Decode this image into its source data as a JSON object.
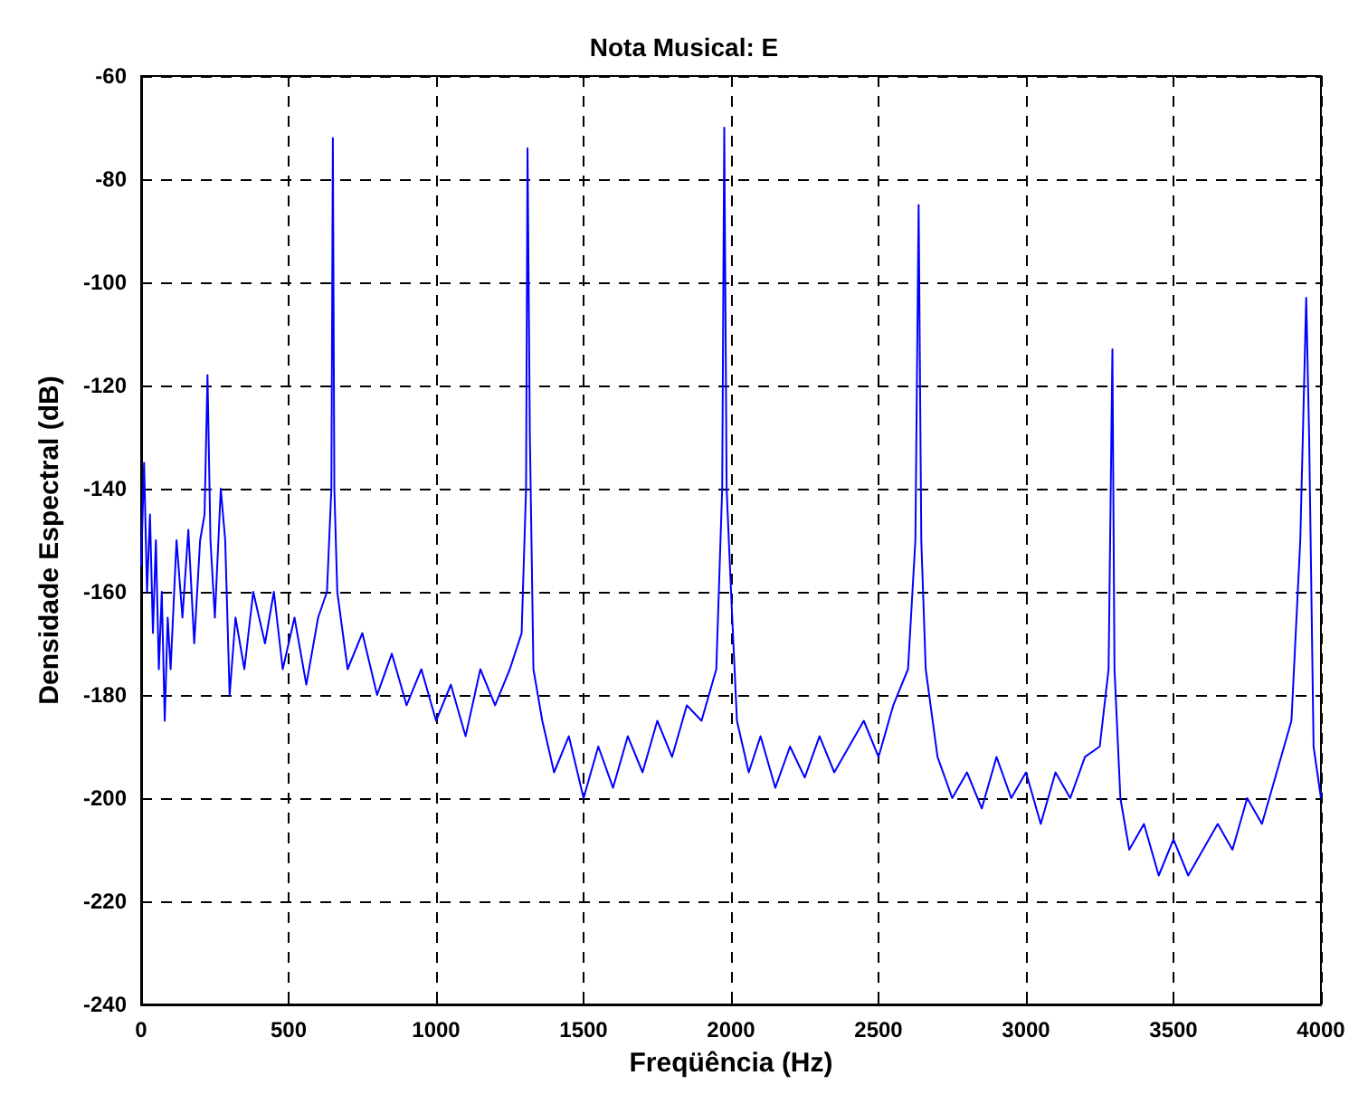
{
  "chart_data": {
    "type": "line",
    "title": "Nota Musical: E",
    "xlabel": "Freqüência (Hz)",
    "ylabel": "Densidade Espectral (dB)",
    "x": [
      0,
      10,
      20,
      30,
      40,
      50,
      60,
      70,
      80,
      90,
      100,
      120,
      140,
      160,
      180,
      200,
      215,
      225,
      235,
      250,
      270,
      285,
      300,
      320,
      350,
      380,
      420,
      450,
      480,
      520,
      560,
      600,
      630,
      645,
      650,
      655,
      665,
      700,
      750,
      800,
      850,
      900,
      950,
      1000,
      1050,
      1100,
      1150,
      1200,
      1250,
      1290,
      1305,
      1310,
      1318,
      1330,
      1360,
      1400,
      1450,
      1500,
      1550,
      1600,
      1650,
      1700,
      1750,
      1800,
      1850,
      1900,
      1950,
      1970,
      1977,
      1985,
      2000,
      2020,
      2060,
      2100,
      2150,
      2200,
      2250,
      2300,
      2350,
      2400,
      2450,
      2500,
      2550,
      2600,
      2625,
      2636,
      2645,
      2660,
      2700,
      2750,
      2800,
      2850,
      2900,
      2950,
      3000,
      3050,
      3100,
      3150,
      3200,
      3250,
      3280,
      3293,
      3300,
      3320,
      3350,
      3400,
      3450,
      3500,
      3550,
      3600,
      3650,
      3700,
      3750,
      3800,
      3850,
      3900,
      3930,
      3950,
      3960,
      3975,
      4000
    ],
    "series": [
      {
        "color": "#0000ff",
        "values": [
          -155,
          -135,
          -160,
          -145,
          -168,
          -150,
          -175,
          -160,
          -185,
          -165,
          -175,
          -150,
          -165,
          -148,
          -170,
          -150,
          -145,
          -118,
          -150,
          -165,
          -140,
          -150,
          -180,
          -165,
          -175,
          -160,
          -170,
          -160,
          -175,
          -165,
          -178,
          -165,
          -160,
          -140,
          -72,
          -140,
          -160,
          -175,
          -168,
          -180,
          -172,
          -182,
          -175,
          -185,
          -178,
          -188,
          -175,
          -182,
          -175,
          -168,
          -140,
          -74,
          -130,
          -175,
          -185,
          -195,
          -188,
          -200,
          -190,
          -198,
          -188,
          -195,
          -185,
          -192,
          -182,
          -185,
          -175,
          -140,
          -70,
          -140,
          -160,
          -185,
          -195,
          -188,
          -198,
          -190,
          -196,
          -188,
          -195,
          -190,
          -185,
          -192,
          -182,
          -175,
          -150,
          -85,
          -150,
          -175,
          -192,
          -200,
          -195,
          -202,
          -192,
          -200,
          -195,
          -205,
          -195,
          -200,
          -192,
          -190,
          -175,
          -113,
          -175,
          -200,
          -210,
          -205,
          -215,
          -208,
          -215,
          -210,
          -205,
          -210,
          -200,
          -205,
          -195,
          -185,
          -150,
          -103,
          -130,
          -190,
          -200
        ]
      }
    ],
    "xlim": [
      0,
      4000
    ],
    "xticks": [
      0,
      500,
      1000,
      1500,
      2000,
      2500,
      3000,
      3500,
      4000
    ],
    "ylim": [
      -240,
      -60
    ],
    "yticks": [
      -240,
      -220,
      -200,
      -180,
      -160,
      -140,
      -120,
      -100,
      -80,
      -60
    ],
    "grid": true,
    "line_style": "solid",
    "marker": "none"
  }
}
